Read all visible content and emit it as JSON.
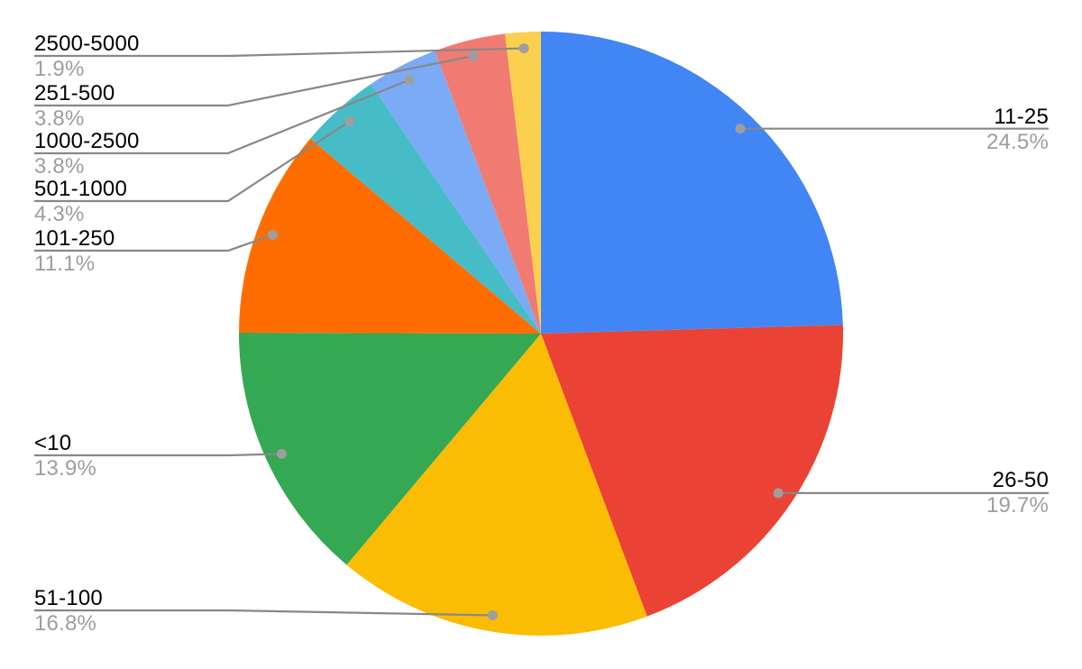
{
  "chart_data": {
    "type": "pie",
    "title": "",
    "legend_position": "none",
    "label_style": "callout-with-leader-lines",
    "start_angle_deg": 0,
    "direction": "clockwise",
    "displayed_total_pct": 99.8,
    "slices": [
      {
        "label": "11-25",
        "pct": 24.5,
        "pct_text": "24.5%",
        "color": "#4285F4",
        "side": "right"
      },
      {
        "label": "26-50",
        "pct": 19.7,
        "pct_text": "19.7%",
        "color": "#EA4335",
        "side": "right"
      },
      {
        "label": "51-100",
        "pct": 16.8,
        "pct_text": "16.8%",
        "color": "#FBBC04",
        "side": "left"
      },
      {
        "label": "<10",
        "pct": 13.9,
        "pct_text": "13.9%",
        "color": "#34A853",
        "side": "left"
      },
      {
        "label": "101-250",
        "pct": 11.1,
        "pct_text": "11.1%",
        "color": "#FF6D01",
        "side": "left"
      },
      {
        "label": "501-1000",
        "pct": 4.3,
        "pct_text": "4.3%",
        "color": "#46BDC6",
        "side": "left"
      },
      {
        "label": "1000-2500",
        "pct": 3.8,
        "pct_text": "3.8%",
        "color": "#7BAAF7",
        "side": "left"
      },
      {
        "label": "251-500",
        "pct": 3.8,
        "pct_text": "3.8%",
        "color": "#F07B72",
        "side": "left"
      },
      {
        "label": "2500-5000",
        "pct": 1.9,
        "pct_text": "1.9%",
        "color": "#FCD04F",
        "side": "left"
      }
    ],
    "colors": {
      "background": "#ffffff",
      "label_text": "#000000",
      "percent_text": "#9e9e9e",
      "callout_line": "#888888",
      "callout_dot": "#9e9e9e"
    }
  }
}
